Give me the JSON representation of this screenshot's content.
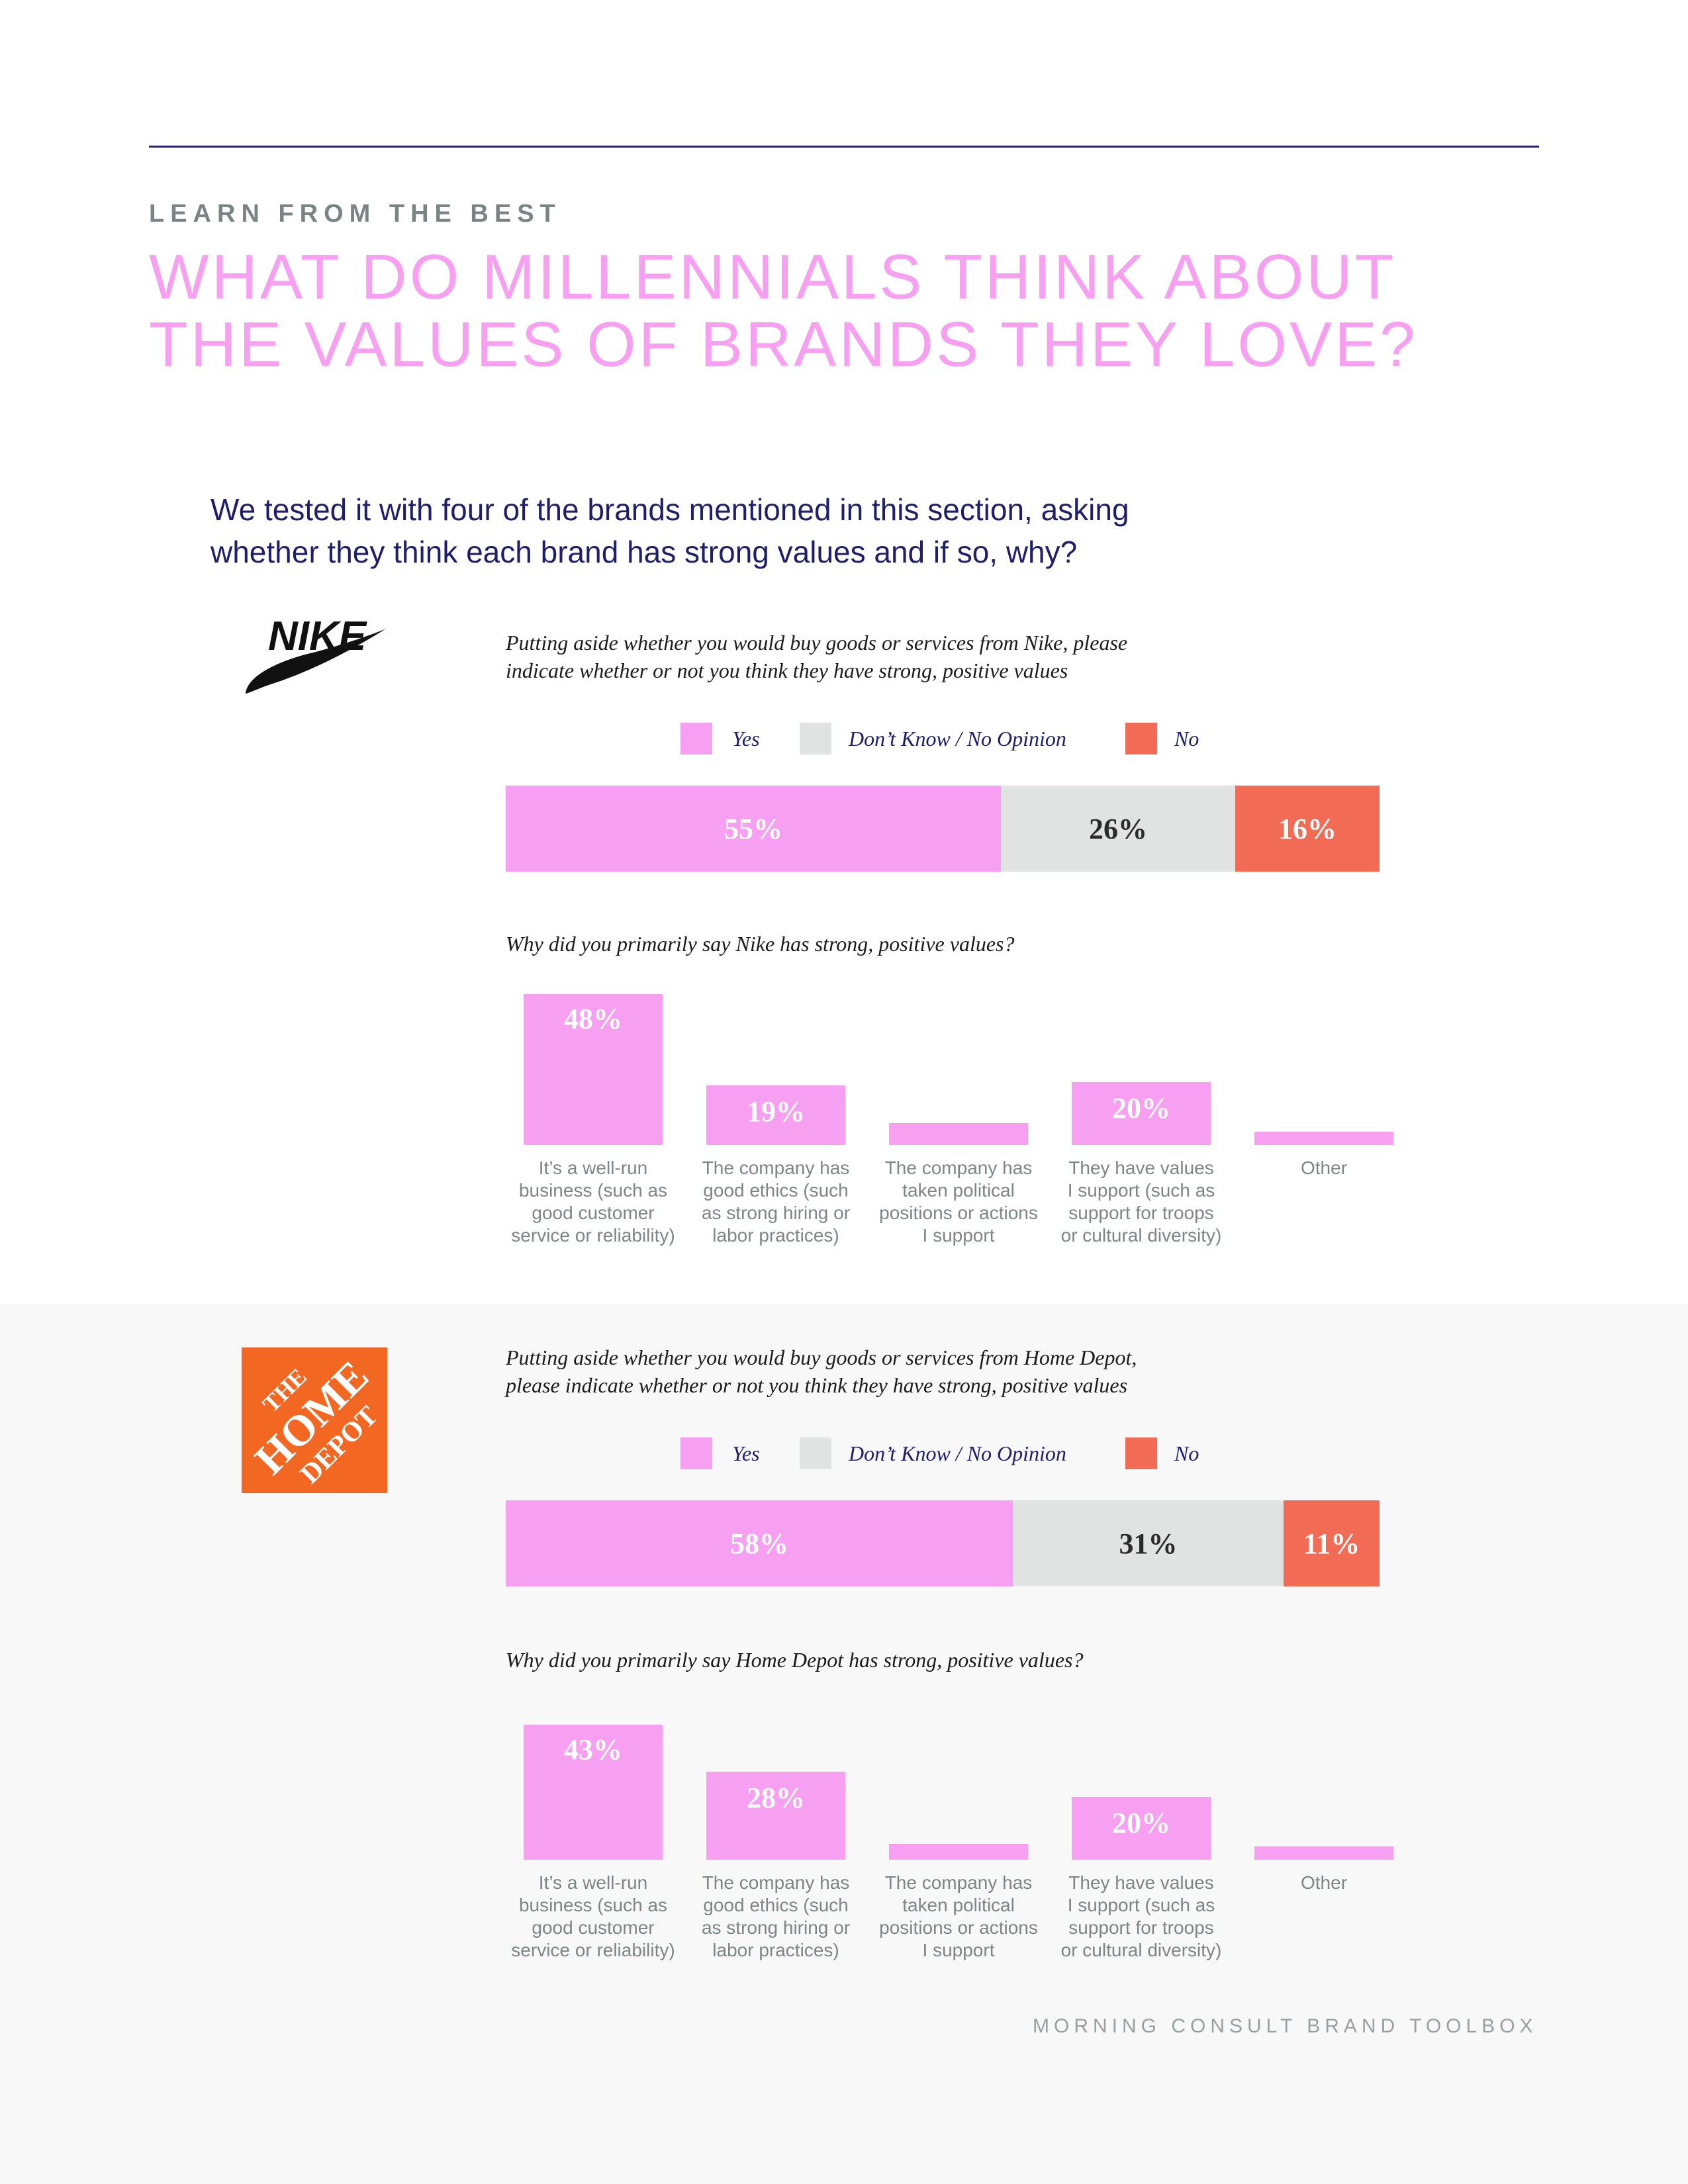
{
  "header": {
    "kicker": "LEARN FROM THE BEST",
    "title_line1": "WHAT DO MILLENNIALS THINK ABOUT",
    "title_line2": "THE VALUES OF BRANDS THEY LOVE?",
    "intro_line1": "We tested it with four of the brands mentioned in this section, asking",
    "intro_line2": "whether they think each brand has strong values and if so, why?"
  },
  "colors": {
    "yes": "#f79ff0",
    "dont_know": "#e1e3e3",
    "no": "#f26b55",
    "navy": "#1f1e6b"
  },
  "legend": {
    "yes": "Yes",
    "dont_know": "Don’t Know / No Opinion",
    "no": "No"
  },
  "brands": [
    {
      "logo": "nike-swoosh-icon",
      "logo_text": "NIKE",
      "question1_line1": "Putting aside whether you would buy goods or services from Nike, please",
      "question1_line2": "indicate whether or not you think they have strong, positive values",
      "question2": "Why did you primarily say Nike has strong, positive values?"
    },
    {
      "logo": "home-depot-icon",
      "logo_text": [
        "THE",
        "HOME",
        "DEPOT"
      ],
      "question1_line1": "Putting aside whether you would buy goods or services from Home Depot,",
      "question1_line2": "please indicate whether or not you think they have strong, positive values",
      "question2": "Why did you primarily say Home Depot has strong, positive values?"
    }
  ],
  "chart_data": [
    {
      "type": "bar",
      "orientation": "horizontal-stacked",
      "categories": [
        "Yes",
        "Don’t Know / No Opinion",
        "No"
      ],
      "values": [
        55,
        26,
        16
      ],
      "labels": [
        "55%",
        "26%",
        "16%"
      ]
    },
    {
      "type": "bar",
      "categories": [
        "It’s a well-run business (such as good customer service or reliability)",
        "The company has good ethics (such as strong hiring or labor practices)",
        "The company has taken political positions or actions I support",
        "They have values I support (such as support for troops or cultural diversity)",
        "Other"
      ],
      "category_lines": [
        [
          "It’s a well-run",
          "business (such as",
          "good customer",
          "service or reliability)"
        ],
        [
          "The company has",
          "good ethics (such",
          "as strong hiring or",
          "labor practices)"
        ],
        [
          "The company has",
          "taken political",
          "positions or actions",
          "I support"
        ],
        [
          "They have values",
          "I support (such as",
          "support for troops",
          "or cultural diversity)"
        ],
        [
          "Other"
        ]
      ],
      "values": [
        48,
        19,
        7,
        20,
        3
      ],
      "labels": [
        "48%",
        "19%",
        "",
        "20%",
        ""
      ]
    },
    {
      "type": "bar",
      "orientation": "horizontal-stacked",
      "categories": [
        "Yes",
        "Don’t Know / No Opinion",
        "No"
      ],
      "values": [
        58,
        31,
        11
      ],
      "labels": [
        "58%",
        "31%",
        "11%"
      ]
    },
    {
      "type": "bar",
      "categories": [
        "It’s a well-run business (such as good customer service or reliability)",
        "The company has good ethics (such as strong hiring or labor practices)",
        "The company has taken political positions or actions I support",
        "They have values I support (such as support for troops or cultural diversity)",
        "Other"
      ],
      "category_lines": [
        [
          "It’s a well-run",
          "business (such as",
          "good customer",
          "service or reliability)"
        ],
        [
          "The company has",
          "good ethics (such",
          "as strong hiring or",
          "labor practices)"
        ],
        [
          "The company has",
          "taken political",
          "positions or actions",
          "I support"
        ],
        [
          "They have values",
          "I support (such as",
          "support for troops",
          "or cultural diversity)"
        ],
        [
          "Other"
        ]
      ],
      "values": [
        43,
        28,
        5,
        20,
        4
      ],
      "labels": [
        "43%",
        "28%",
        "",
        "20%",
        ""
      ]
    }
  ],
  "footer": "MORNING CONSULT BRAND TOOLBOX"
}
